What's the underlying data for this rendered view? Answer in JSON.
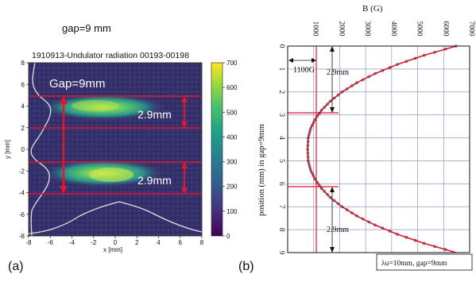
{
  "panel_a": {
    "gap_title": "gap=9 mm",
    "plot_title": "1910913-Undulator radiation  00193-00198",
    "xlabel": "x [mm]",
    "ylabel": "y [mm]",
    "panel_label": "(a)",
    "gap_annotation": "Gap=9mm",
    "upper_annotation": "2.9mm",
    "lower_annotation": "2.9mm",
    "colorbar_ticks": [
      "700",
      "600",
      "500",
      "400",
      "300",
      "200",
      "100",
      "0"
    ],
    "colors": {
      "line": "#e8142a",
      "profile": "#e0e0e0",
      "bg": "#35306b"
    }
  },
  "panel_b": {
    "xlabel": "B (G)",
    "ylabel": "position (mm) in gap=9mm",
    "panel_label": "(b)",
    "annotation_1100": "1100G",
    "annotation_upper": "2.9mm",
    "annotation_lower": "2.9mm",
    "legend_text": "λu=10mm, gap=9mm",
    "colors": {
      "curve": "#e8142a",
      "grid": "#7a86c6",
      "frame": "#000000"
    }
  },
  "chart_data": [
    {
      "type": "heatmap",
      "title": "1910913-Undulator radiation  00193-00198",
      "xlabel": "x [mm]",
      "ylabel": "y [mm]",
      "xlim": [
        -8,
        8
      ],
      "ylim": [
        -8,
        8
      ],
      "xticks": [
        "-8",
        "-6",
        "-4",
        "-2",
        "0",
        "2",
        "4",
        "6",
        "8"
      ],
      "yticks": [
        "8",
        "6",
        "4",
        "2",
        "0",
        "-2",
        "-4",
        "-6",
        "-8"
      ],
      "colorbar": {
        "min": 0,
        "max": 700,
        "colormap": "viridis"
      },
      "hot_bands": [
        {
          "y_center": 3.3,
          "x_range": [
            -4.5,
            3.5
          ],
          "peak": 650
        },
        {
          "y_center": -2.8,
          "x_range": [
            -4.5,
            3.5
          ],
          "peak": 650
        }
      ],
      "horizontal_lines_y": [
        4.8,
        1.9,
        -1.4,
        -4.3
      ],
      "annotations": [
        "Gap=9mm",
        "2.9mm",
        "2.9mm"
      ]
    },
    {
      "type": "line",
      "xlabel": "B (G)",
      "ylabel": "position (mm) in gap=9mm",
      "xlim": [
        0,
        7000
      ],
      "ylim": [
        9,
        0
      ],
      "xticks": [
        "1000",
        "2000",
        "3000",
        "4000",
        "5000",
        "6000",
        "7000"
      ],
      "yticks": [
        "0",
        "1",
        "2",
        "3",
        "4",
        "5",
        "6",
        "7",
        "8",
        "9"
      ],
      "series": [
        {
          "x": [
            6480,
            5250,
            4220,
            3360,
            2660,
            2090,
            1640,
            1300,
            1050,
            880,
            790,
            770,
            790,
            880,
            1050,
            1300,
            1640,
            2090,
            2660,
            3360,
            4220,
            5250,
            6480
          ],
          "y": [
            0.0,
            0.4,
            0.8,
            1.2,
            1.6,
            2.0,
            2.4,
            2.8,
            3.2,
            3.6,
            4.0,
            4.5,
            5.0,
            5.4,
            5.8,
            6.2,
            6.6,
            7.0,
            7.4,
            7.8,
            8.2,
            8.6,
            9.0
          ]
        }
      ],
      "reference_x": 1100,
      "reference_y": [
        2.9,
        6.1
      ],
      "annotations": [
        "1100G",
        "2.9mm",
        "2.9mm"
      ],
      "legend": "λu=10mm, gap=9mm",
      "grid": true
    }
  ]
}
